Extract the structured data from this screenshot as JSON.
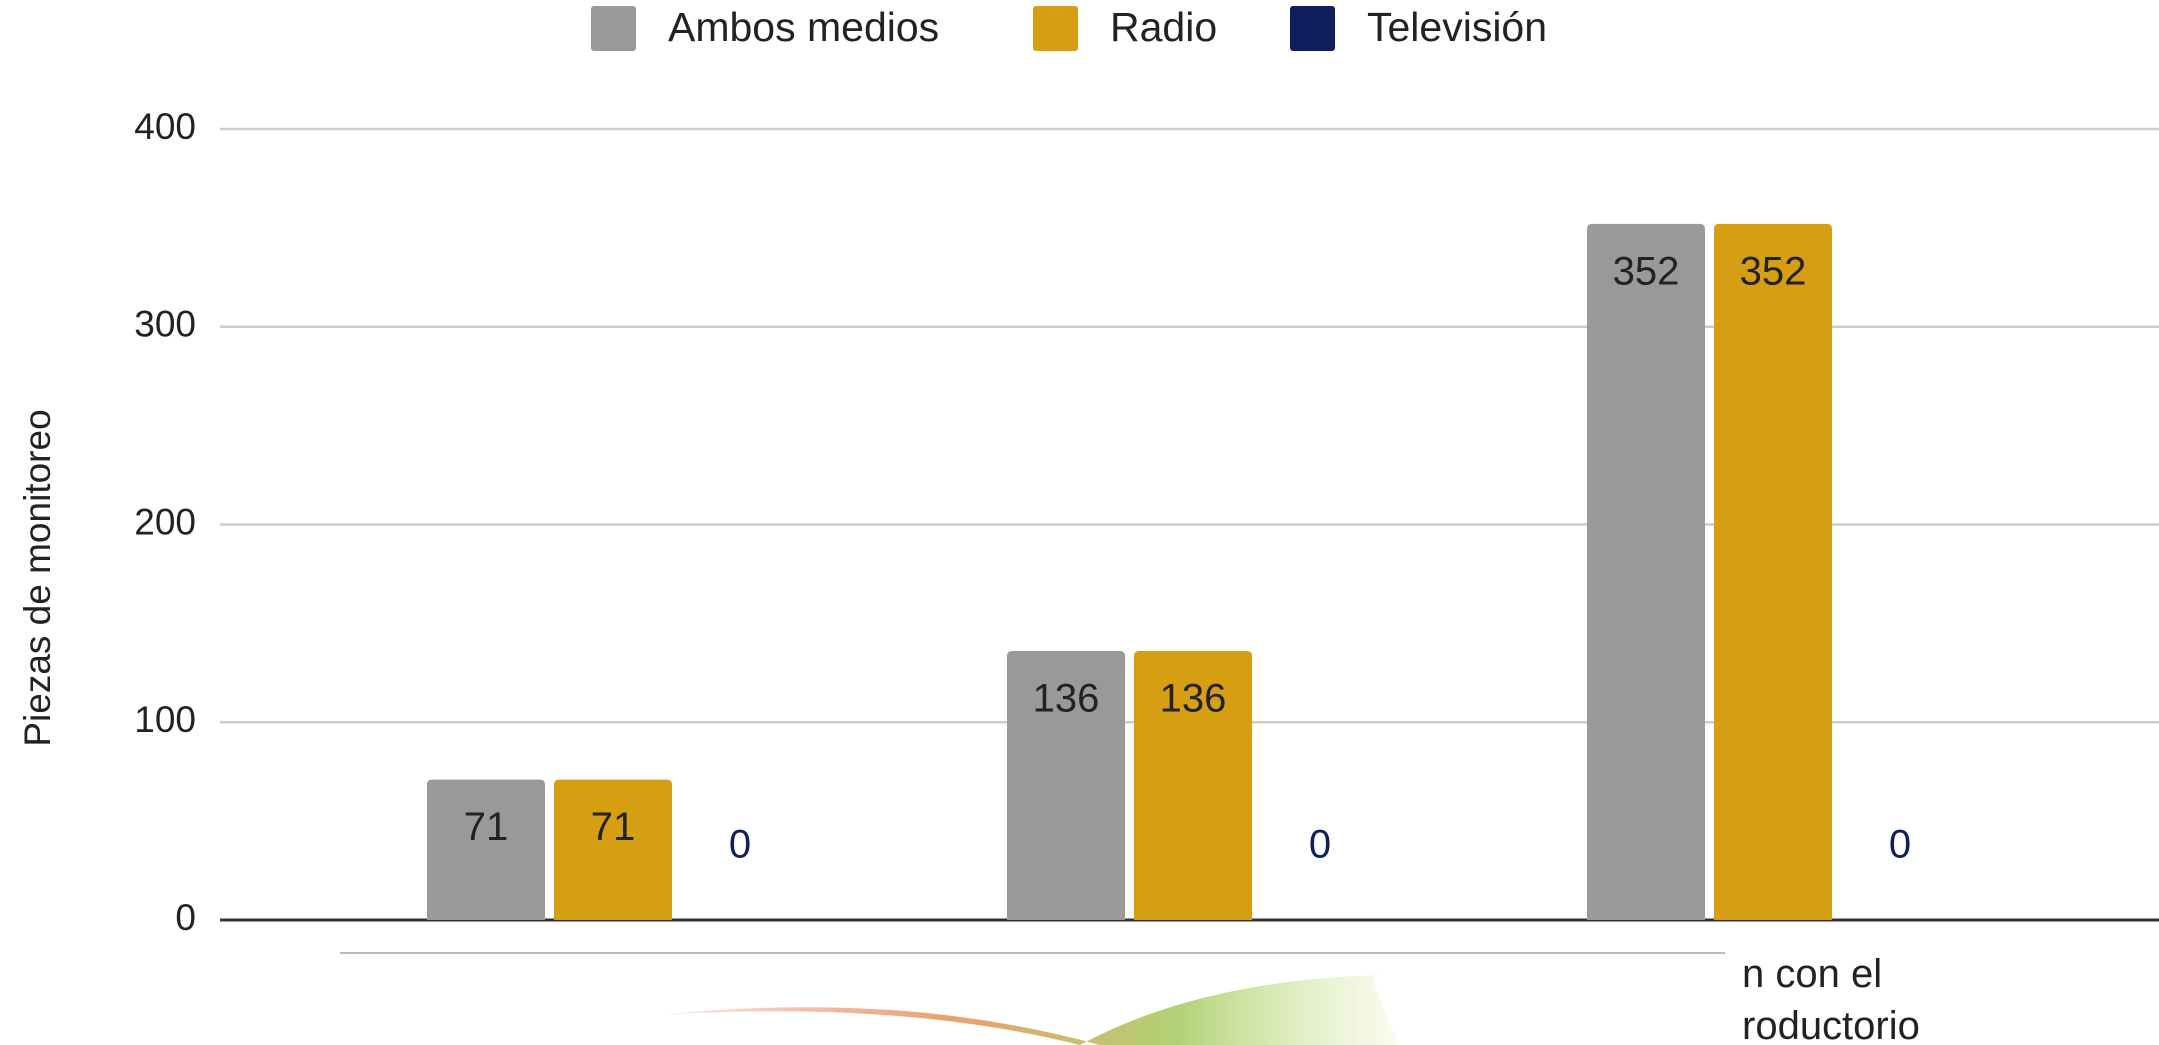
{
  "chart_data": {
    "type": "bar",
    "y_label": "Piezas de monitoreo",
    "categories": [
      null,
      null,
      "n con el\nroductorio"
    ],
    "series": [
      {
        "name": "Ambos medios",
        "color": "#999999",
        "values": [
          71,
          136,
          352
        ]
      },
      {
        "name": "Radio",
        "color": "#d69e12",
        "values": [
          71,
          136,
          352
        ]
      },
      {
        "name": "Televisión",
        "color": "#0d1f5c",
        "values": [
          0,
          0,
          0
        ]
      }
    ],
    "ylim": [
      0,
      400
    ],
    "yticks": [
      0,
      100,
      200,
      300,
      400
    ],
    "grid": true,
    "legend": "top"
  }
}
